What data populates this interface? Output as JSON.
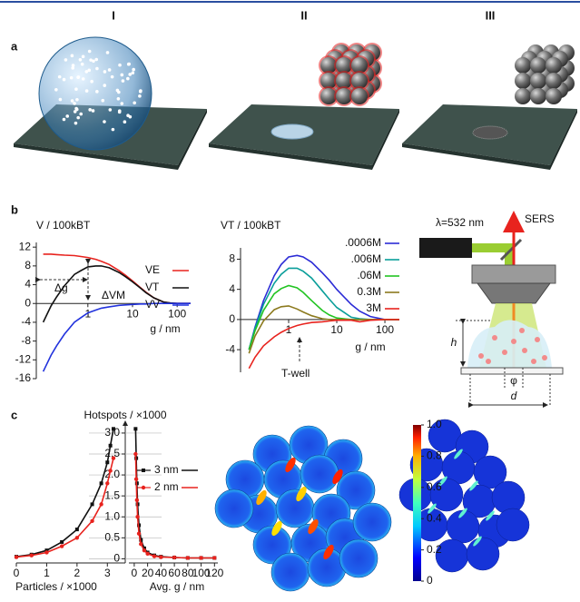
{
  "columns": [
    "I",
    "II",
    "III"
  ],
  "panel_labels": [
    "a",
    "b",
    "c"
  ],
  "schematic": {
    "laser_label": "λ=532 nm",
    "signal_label": "SERS",
    "height_label": "h",
    "spot_label": "φ",
    "diameter_label": "d"
  },
  "chart_data": [
    {
      "type": "line",
      "ylabel": "V / 100kBT",
      "xlabel": "g / nm",
      "xscale": "log",
      "xlim": [
        0.07,
        200
      ],
      "xticks": [
        1,
        10,
        100
      ],
      "ylim": [
        -16,
        13
      ],
      "yticks": [
        -16,
        -12,
        -8,
        -4,
        0,
        4,
        8,
        12
      ],
      "x": [
        0.1,
        0.15,
        0.2,
        0.3,
        0.5,
        0.7,
        1,
        1.5,
        2,
        3,
        5,
        7,
        10,
        15,
        20,
        30,
        50,
        70,
        100,
        150,
        200
      ],
      "series": [
        {
          "name": "VE",
          "color": "#e8231e",
          "values": [
            10.5,
            10.5,
            10.4,
            10.3,
            10.2,
            10,
            9.8,
            9.4,
            9,
            8.3,
            7,
            6,
            4.8,
            3.4,
            2.4,
            1.2,
            0.3,
            0.1,
            0,
            0,
            0
          ]
        },
        {
          "name": "VT",
          "color": "#111111",
          "values": [
            -4,
            -0.5,
            1.4,
            3.8,
            6.2,
            7,
            7.8,
            8,
            8,
            7.6,
            6.6,
            5.7,
            4.6,
            3.3,
            2.3,
            1.2,
            0.3,
            0.1,
            0,
            0,
            0
          ]
        },
        {
          "name": "VV",
          "color": "#2233dd",
          "values": [
            -14.5,
            -11,
            -9,
            -6.5,
            -4,
            -3,
            -2,
            -1.4,
            -1,
            -0.7,
            -0.4,
            -0.3,
            -0.2,
            -0.1,
            -0.1,
            0,
            0,
            0,
            0,
            0,
            0
          ]
        }
      ],
      "annotations": [
        "Δg",
        "ΔVM"
      ]
    },
    {
      "type": "line",
      "ylabel": "VT / 100kBT",
      "xlabel": "g / nm",
      "xscale": "log",
      "xlim": [
        0.1,
        200
      ],
      "xticks": [
        1,
        10,
        100
      ],
      "ylim": [
        -7,
        9.5
      ],
      "yticks": [
        -4,
        0,
        4,
        8
      ],
      "x": [
        0.15,
        0.2,
        0.3,
        0.5,
        0.7,
        1,
        1.5,
        2,
        3,
        5,
        7,
        10,
        20,
        30,
        50,
        100,
        200
      ],
      "series": [
        {
          "name": ".0006M",
          "color": "#2b2bd6",
          "values": [
            -4,
            -1,
            2.5,
            5.8,
            7.3,
            8.3,
            8.5,
            8.3,
            7.6,
            6.2,
            5.2,
            4,
            2,
            1.1,
            0.4,
            0,
            0
          ]
        },
        {
          "name": ".006M",
          "color": "#0a9e9a",
          "values": [
            -4,
            -1.2,
            2,
            4.8,
            6,
            6.8,
            6.8,
            6.4,
            5.5,
            3.8,
            2.7,
            1.6,
            0.3,
            0.1,
            0,
            0,
            0
          ]
        },
        {
          "name": ".06M",
          "color": "#22c422",
          "values": [
            -4,
            -1.5,
            1.2,
            3.4,
            4.1,
            4.5,
            4.2,
            3.6,
            2.5,
            1.2,
            0.6,
            0.2,
            0,
            0,
            0,
            0,
            0
          ]
        },
        {
          "name": "0.3M",
          "color": "#8c7a1e",
          "values": [
            -4.5,
            -2.2,
            -0.2,
            1.3,
            1.7,
            1.8,
            1.4,
            1,
            0.5,
            0.1,
            0,
            0,
            0,
            0,
            0,
            0,
            0
          ]
        },
        {
          "name": "3M",
          "color": "#e8231e",
          "values": [
            -6.5,
            -5,
            -3.5,
            -2.3,
            -1.7,
            -1.2,
            -0.8,
            -0.6,
            -0.4,
            -0.3,
            -0.2,
            -0.1,
            -0.1,
            -0.3,
            -0.1,
            0,
            0
          ]
        }
      ],
      "annotations": [
        "T-well"
      ]
    },
    {
      "type": "line",
      "ylabel": "Hotspots / ×1000",
      "xlabel": "Particles / ×1000",
      "xlim": [
        0,
        3.5
      ],
      "xticks": [
        0,
        1,
        2,
        3
      ],
      "ylim": [
        -0.1,
        3.15
      ],
      "yticks": [
        0,
        0.5,
        {
          "value": 1,
          "label": "1.0"
        },
        1.5,
        {
          "value": 2,
          "label": "2.0"
        },
        2.5,
        {
          "value": 3,
          "label": "3.0"
        }
      ],
      "grid": true,
      "series": [
        {
          "name": "3 nm",
          "color": "#111111",
          "marker": "square",
          "x": [
            0,
            0.5,
            1,
            1.5,
            2,
            2.5,
            2.8,
            3,
            3.1,
            3.2
          ],
          "values": [
            0.05,
            0.1,
            0.2,
            0.4,
            0.7,
            1.3,
            1.8,
            2.3,
            2.7,
            3.1
          ]
        },
        {
          "name": "2 nm",
          "color": "#e8231e",
          "marker": "circle",
          "x": [
            0,
            0.5,
            1,
            1.5,
            2,
            2.5,
            2.8,
            3,
            3.1,
            3.2
          ],
          "values": [
            0.04,
            0.08,
            0.15,
            0.3,
            0.5,
            0.9,
            1.3,
            1.8,
            2.1,
            2.4
          ]
        }
      ]
    },
    {
      "type": "line",
      "xlabel": "Avg. g / nm",
      "xlim": [
        -8,
        125
      ],
      "xticks": [
        0,
        20,
        40,
        60,
        80,
        100,
        120
      ],
      "ylim": [
        -0.1,
        3.15
      ],
      "series": [
        {
          "color": "#111111",
          "marker": "square",
          "x": [
            2,
            3,
            4,
            5,
            7,
            10,
            15,
            20,
            30,
            40,
            60,
            80,
            100,
            120
          ],
          "values": [
            3.1,
            2.4,
            1.8,
            1.3,
            0.8,
            0.45,
            0.25,
            0.15,
            0.08,
            0.05,
            0.03,
            0.02,
            0.02,
            0.02
          ]
        },
        {
          "color": "#e8231e",
          "marker": "circle",
          "x": [
            2,
            3,
            4,
            5,
            7,
            10,
            15,
            20,
            30,
            40,
            60,
            80,
            100,
            120
          ],
          "values": [
            2.5,
            1.9,
            1.4,
            1,
            0.6,
            0.35,
            0.2,
            0.12,
            0.06,
            0.04,
            0.03,
            0.02,
            0.02,
            0.02
          ]
        }
      ]
    },
    {
      "type": "colorbar",
      "ylim": [
        0,
        1
      ],
      "yticks": [
        0,
        0.2,
        0.4,
        0.6,
        0.8,
        {
          "value": 1,
          "label": "1.0"
        }
      ]
    }
  ]
}
